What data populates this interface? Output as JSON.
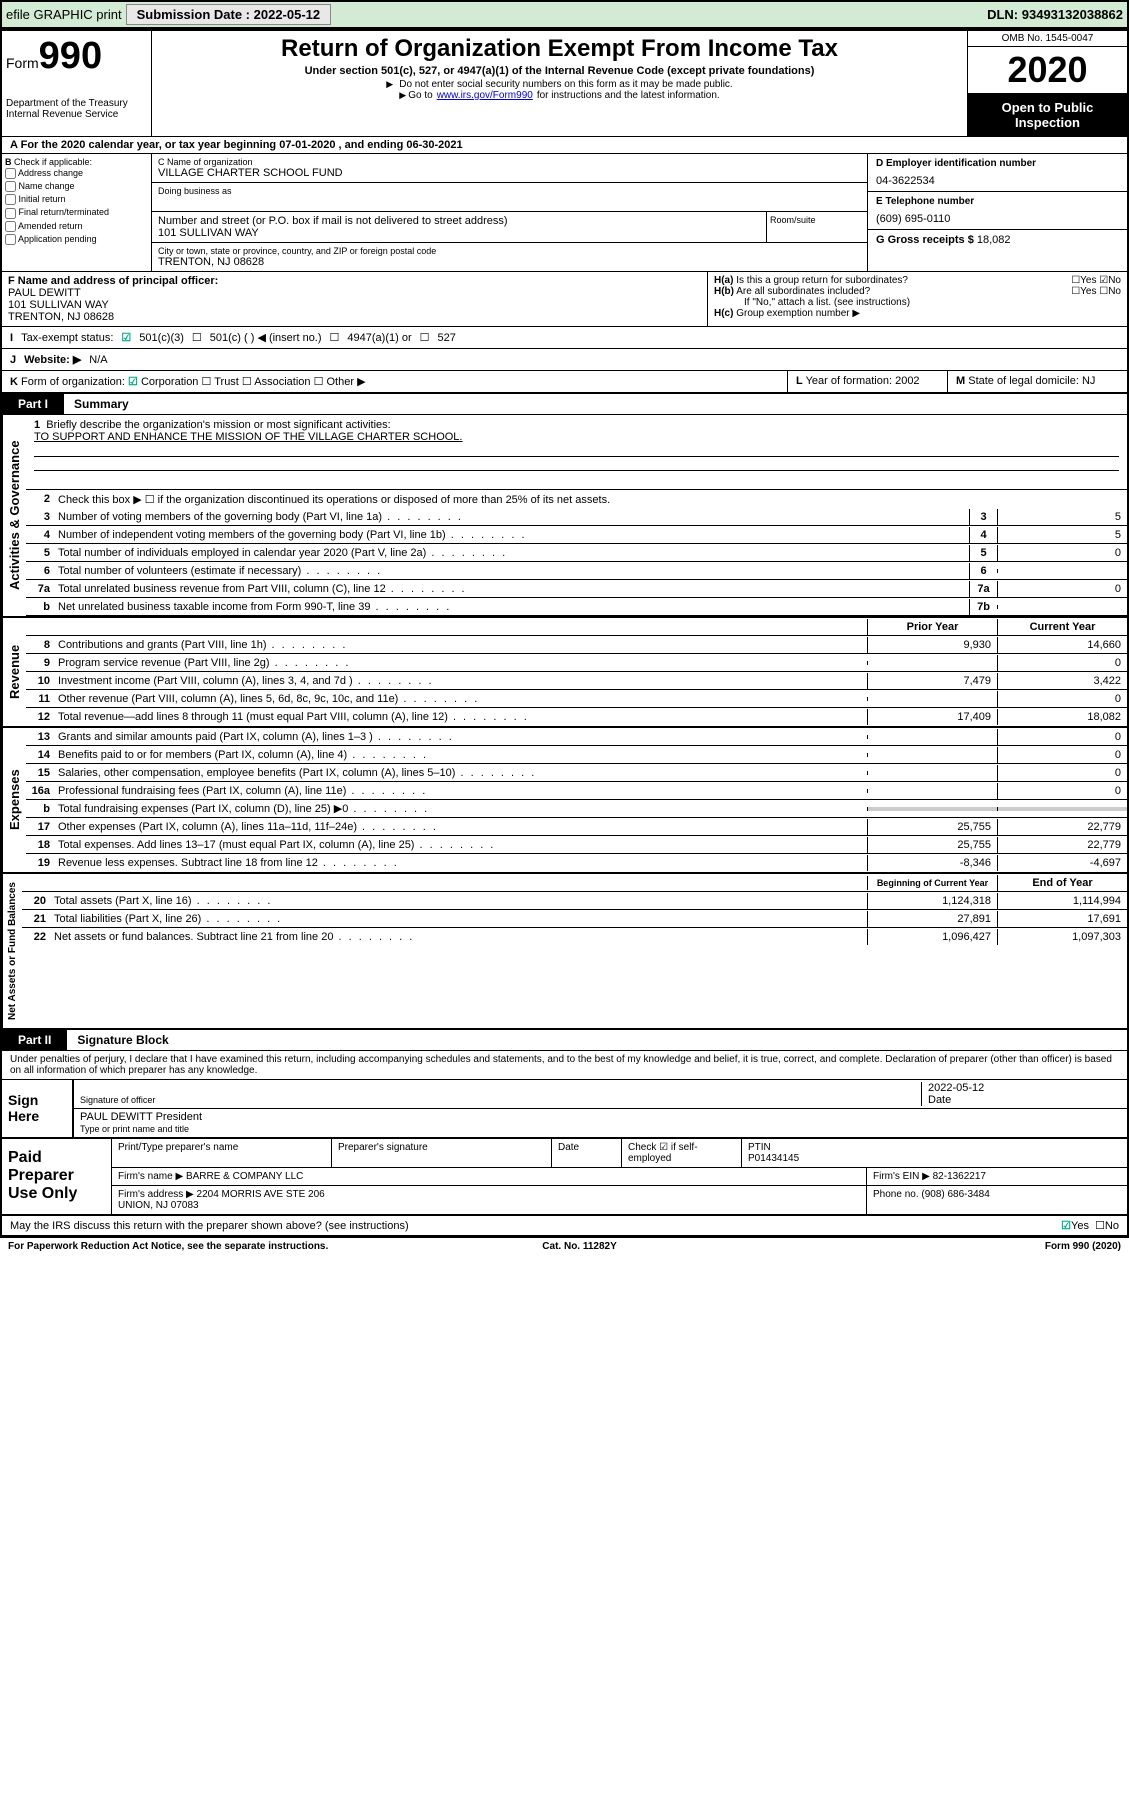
{
  "topbar": {
    "efile": "efile GRAPHIC print ",
    "submission_label": "Submission Date : ",
    "submission_date": "2022-05-12",
    "dln_label": "DLN: ",
    "dln": "93493132038862"
  },
  "header": {
    "form_label": "Form",
    "form_num": "990",
    "dept": "Department of the Treasury\nInternal Revenue Service",
    "title": "Return of Organization Exempt From Income Tax",
    "sub1": "Under section 501(c), 527, or 4947(a)(1) of the Internal Revenue Code (except private foundations)",
    "sub2": "Do not enter social security numbers on this form as it may be made public.",
    "sub3_pre": "Go to ",
    "sub3_link": "www.irs.gov/Form990",
    "sub3_post": " for instructions and the latest information.",
    "omb": "OMB No. 1545-0047",
    "year": "2020",
    "inspect": "Open to Public Inspection"
  },
  "period": "For the 2020 calendar year, or tax year beginning 07-01-2020   , and ending 06-30-2021",
  "sectionB": {
    "check_label": "Check if applicable:",
    "opts": [
      "Address change",
      "Name change",
      "Initial return",
      "Final return/terminated",
      "Amended return",
      "Application pending"
    ],
    "c_label": "C Name of organization",
    "org_name": "VILLAGE CHARTER SCHOOL FUND",
    "dba_label": "Doing business as",
    "addr_hint": "Number and street (or P.O. box if mail is not delivered to street address)",
    "addr": "101 SULLIVAN WAY",
    "room_hint": "Room/suite",
    "city_hint": "City or town, state or province, country, and ZIP or foreign postal code",
    "city": "TRENTON, NJ  08628",
    "d_label": "D Employer identification number",
    "ein": "04-3622534",
    "e_label": "E Telephone number",
    "phone": "(609) 695-0110",
    "g_label": "G Gross receipts $ ",
    "gross": "18,082",
    "f_label": "F Name and address of principal officer:",
    "officer": "PAUL DEWITT\n101 SULLIVAN WAY\nTRENTON, NJ  08628",
    "ha": "Is this a group return for subordinates?",
    "hb": "Are all subordinates included?",
    "hb_note": "If \"No,\" attach a list. (see instructions)",
    "hc": "Group exemption number ▶"
  },
  "row_i": {
    "label": "Tax-exempt status:",
    "opts": [
      "501(c)(3)",
      "501(c) (   ) ◀ (insert no.)",
      "4947(a)(1) or",
      "527"
    ]
  },
  "row_j": {
    "label": "Website: ▶",
    "val": "N/A"
  },
  "row_k": {
    "label": "Form of organization:",
    "opts": [
      "Corporation",
      "Trust",
      "Association",
      "Other ▶"
    ],
    "l_label": "Year of formation: ",
    "l_val": "2002",
    "m_label": "State of legal domicile: ",
    "m_val": "NJ"
  },
  "part1": {
    "tab": "Part I",
    "title": "Summary",
    "vert_labels": [
      "Activities & Governance",
      "Revenue",
      "Expenses",
      "Net Assets or Fund Balances"
    ],
    "q1": "Briefly describe the organization's mission or most significant activities:",
    "mission": "TO SUPPORT AND ENHANCE THE MISSION OF THE VILLAGE CHARTER SCHOOL.",
    "q2": "Check this box ▶ ☐  if the organization discontinued its operations or disposed of more than 25% of its net assets.",
    "gov_lines": [
      {
        "n": "3",
        "t": "Number of voting members of the governing body (Part VI, line 1a)",
        "box": "3",
        "v": "5"
      },
      {
        "n": "4",
        "t": "Number of independent voting members of the governing body (Part VI, line 1b)",
        "box": "4",
        "v": "5"
      },
      {
        "n": "5",
        "t": "Total number of individuals employed in calendar year 2020 (Part V, line 2a)",
        "box": "5",
        "v": "0"
      },
      {
        "n": "6",
        "t": "Total number of volunteers (estimate if necessary)",
        "box": "6",
        "v": ""
      },
      {
        "n": "7a",
        "t": "Total unrelated business revenue from Part VIII, column (C), line 12",
        "box": "7a",
        "v": "0"
      },
      {
        "n": "b",
        "t": "Net unrelated business taxable income from Form 990-T, line 39",
        "box": "7b",
        "v": ""
      }
    ],
    "col_prior": "Prior Year",
    "col_curr": "Current Year",
    "rev_lines": [
      {
        "n": "8",
        "t": "Contributions and grants (Part VIII, line 1h)",
        "p": "9,930",
        "c": "14,660"
      },
      {
        "n": "9",
        "t": "Program service revenue (Part VIII, line 2g)",
        "p": "",
        "c": "0"
      },
      {
        "n": "10",
        "t": "Investment income (Part VIII, column (A), lines 3, 4, and 7d )",
        "p": "7,479",
        "c": "3,422"
      },
      {
        "n": "11",
        "t": "Other revenue (Part VIII, column (A), lines 5, 6d, 8c, 9c, 10c, and 11e)",
        "p": "",
        "c": "0"
      },
      {
        "n": "12",
        "t": "Total revenue—add lines 8 through 11 (must equal Part VIII, column (A), line 12)",
        "p": "17,409",
        "c": "18,082"
      }
    ],
    "exp_lines": [
      {
        "n": "13",
        "t": "Grants and similar amounts paid (Part IX, column (A), lines 1–3 )",
        "p": "",
        "c": "0"
      },
      {
        "n": "14",
        "t": "Benefits paid to or for members (Part IX, column (A), line 4)",
        "p": "",
        "c": "0"
      },
      {
        "n": "15",
        "t": "Salaries, other compensation, employee benefits (Part IX, column (A), lines 5–10)",
        "p": "",
        "c": "0"
      },
      {
        "n": "16a",
        "t": "Professional fundraising fees (Part IX, column (A), line 11e)",
        "p": "",
        "c": "0"
      },
      {
        "n": "b",
        "t": "Total fundraising expenses (Part IX, column (D), line 25) ▶0",
        "p": "SHADE",
        "c": "SHADE"
      },
      {
        "n": "17",
        "t": "Other expenses (Part IX, column (A), lines 11a–11d, 11f–24e)",
        "p": "25,755",
        "c": "22,779"
      },
      {
        "n": "18",
        "t": "Total expenses. Add lines 13–17 (must equal Part IX, column (A), line 25)",
        "p": "25,755",
        "c": "22,779"
      },
      {
        "n": "19",
        "t": "Revenue less expenses. Subtract line 18 from line 12",
        "p": "-8,346",
        "c": "-4,697"
      }
    ],
    "col_begin": "Beginning of Current Year",
    "col_end": "End of Year",
    "net_lines": [
      {
        "n": "20",
        "t": "Total assets (Part X, line 16)",
        "p": "1,124,318",
        "c": "1,114,994"
      },
      {
        "n": "21",
        "t": "Total liabilities (Part X, line 26)",
        "p": "27,891",
        "c": "17,691"
      },
      {
        "n": "22",
        "t": "Net assets or fund balances. Subtract line 21 from line 20",
        "p": "1,096,427",
        "c": "1,097,303"
      }
    ]
  },
  "part2": {
    "tab": "Part II",
    "title": "Signature Block",
    "decl": "Under penalties of perjury, I declare that I have examined this return, including accompanying schedules and statements, and to the best of my knowledge and belief, it is true, correct, and complete. Declaration of preparer (other than officer) is based on all information of which preparer has any knowledge.",
    "sign_here": "Sign Here",
    "sig_officer": "Signature of officer",
    "sig_date": "2022-05-12",
    "date_lbl": "Date",
    "sig_name": "PAUL DEWITT President",
    "sig_name_sub": "Type or print name and title",
    "paid_label": "Paid Preparer Use Only",
    "prep_name_lbl": "Print/Type preparer's name",
    "prep_sig_lbl": "Preparer's signature",
    "check_self": "Check ☑ if self-employed",
    "ptin_lbl": "PTIN",
    "ptin": "P01434145",
    "firm_name_lbl": "Firm's name   ▶ ",
    "firm_name": "BARRE & COMPANY LLC",
    "firm_ein_lbl": "Firm's EIN ▶ ",
    "firm_ein": "82-1362217",
    "firm_addr_lbl": "Firm's address ▶ ",
    "firm_addr": "2204 MORRIS AVE STE 206\nUNION, NJ  07083",
    "phone_lbl": "Phone no. ",
    "phone": "(908) 686-3484",
    "discuss": "May the IRS discuss this return with the preparer shown above? (see instructions)"
  },
  "footer": {
    "left": "For Paperwork Reduction Act Notice, see the separate instructions.",
    "mid": "Cat. No. 11282Y",
    "right": "Form 990 (2020)"
  }
}
